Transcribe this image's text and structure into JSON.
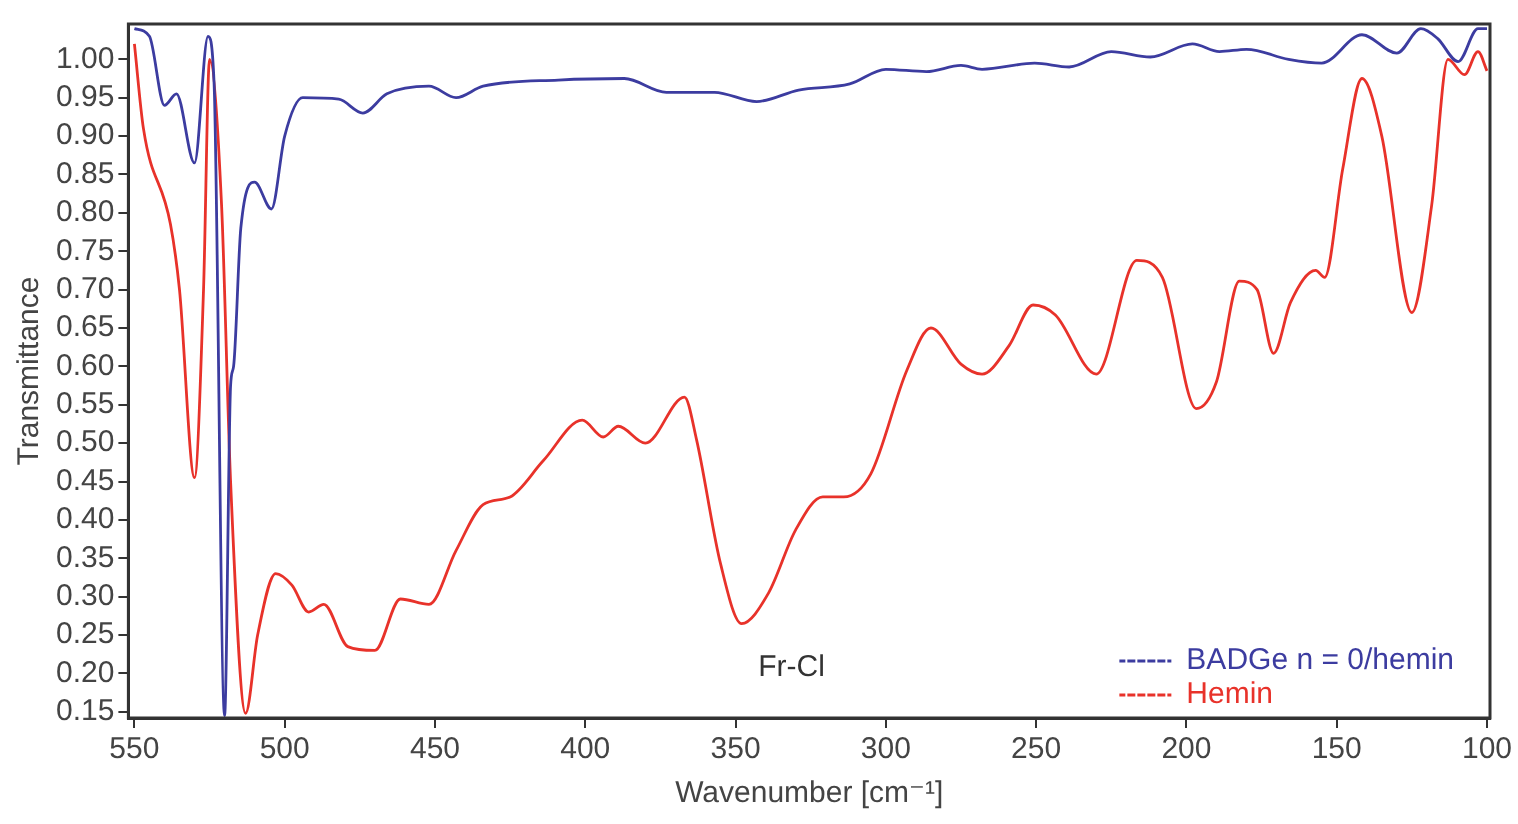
{
  "chart_data": {
    "type": "line",
    "xlabel": "Wavenumber [cm⁻¹]",
    "ylabel": "Transmittance",
    "xlim": [
      552,
      99
    ],
    "ylim": [
      0.142,
      1.046
    ],
    "xticks": [
      550,
      500,
      450,
      400,
      350,
      300,
      250,
      200,
      150,
      100
    ],
    "yticks": [
      0.15,
      {
        "value": 0.2,
        "label": "0.20"
      },
      0.25,
      {
        "value": 0.3,
        "label": "0.30"
      },
      0.35,
      {
        "value": 0.4,
        "label": "0.40"
      },
      0.45,
      {
        "value": 0.5,
        "label": "0.50"
      },
      0.55,
      {
        "value": 0.6,
        "label": "0.60"
      },
      0.65,
      {
        "value": 0.7,
        "label": "0.70"
      },
      0.75,
      {
        "value": 0.8,
        "label": "0.80"
      },
      0.85,
      {
        "value": 0.9,
        "label": "0.90"
      },
      0.95,
      {
        "value": 1,
        "label": "1.00"
      }
    ],
    "grid": false,
    "legend": "bottom right",
    "marker": "none",
    "line_style": "solid",
    "annotations": [
      "Fr-Cl"
    ],
    "series": [
      {
        "name": "BADGe n = 0/hemin",
        "color": "#3c3ca0",
        "x": [
          550,
          545,
          540,
          536,
          530,
          525.5,
          523.5,
          520,
          518,
          517,
          514.6,
          510,
          504.4,
          500,
          494,
          482,
          474,
          466,
          452,
          443,
          434,
          409,
          387,
          373,
          357,
          343,
          329,
          312,
          300,
          286.5,
          275,
          268,
          250.5,
          239,
          225,
          212,
          198,
          189,
          180,
          166,
          155,
          141.6,
          130,
          122,
          116.4,
          109.6,
          103,
          100
        ],
        "values": [
          1.04,
          1.03,
          0.94,
          0.955,
          0.865,
          1.03,
          0.97,
          0.145,
          0.575,
          0.6,
          0.78,
          0.84,
          0.805,
          0.9,
          0.95,
          0.948,
          0.93,
          0.955,
          0.965,
          0.95,
          0.965,
          0.973,
          0.975,
          0.957,
          0.957,
          0.945,
          0.96,
          0.968,
          0.987,
          0.984,
          0.992,
          0.987,
          0.995,
          0.99,
          1.01,
          1.003,
          1.02,
          1.01,
          1.013,
          1.0,
          0.995,
          1.032,
          1.008,
          1.04,
          1.027,
          0.997,
          1.04,
          1.04
        ]
      },
      {
        "name": "Hemin",
        "color": "#e8322a",
        "x": [
          550,
          547,
          538,
          535,
          530,
          527,
          525,
          521,
          518,
          513,
          509,
          503,
          497.6,
          492,
          487,
          479,
          470,
          461.5,
          452,
          443,
          434,
          425,
          414,
          401,
          394,
          389,
          380,
          367,
          363,
          355,
          348,
          339,
          330,
          321,
          314,
          305,
          293,
          285,
          275,
          268,
          259,
          251,
          243.6,
          230,
          216.5,
          208,
          196.7,
          190,
          182.4,
          176.5,
          171,
          165.4,
          157,
          154,
          148,
          141.6,
          135,
          125,
          118.4,
          113,
          107.5,
          103,
          100
        ],
        "values": [
          1.02,
          0.91,
          0.785,
          0.7,
          0.455,
          0.7,
          1.0,
          0.81,
          0.45,
          0.148,
          0.25,
          0.33,
          0.315,
          0.28,
          0.29,
          0.235,
          0.23,
          0.297,
          0.29,
          0.36,
          0.42,
          0.43,
          0.477,
          0.53,
          0.508,
          0.522,
          0.5,
          0.56,
          0.505,
          0.343,
          0.265,
          0.305,
          0.387,
          0.43,
          0.43,
          0.46,
          0.595,
          0.65,
          0.603,
          0.59,
          0.627,
          0.68,
          0.667,
          0.59,
          0.738,
          0.716,
          0.545,
          0.58,
          0.711,
          0.7,
          0.617,
          0.683,
          0.725,
          0.716,
          0.857,
          0.975,
          0.9,
          0.67,
          0.81,
          1.0,
          0.98,
          1.01,
          0.985
        ]
      }
    ]
  }
}
